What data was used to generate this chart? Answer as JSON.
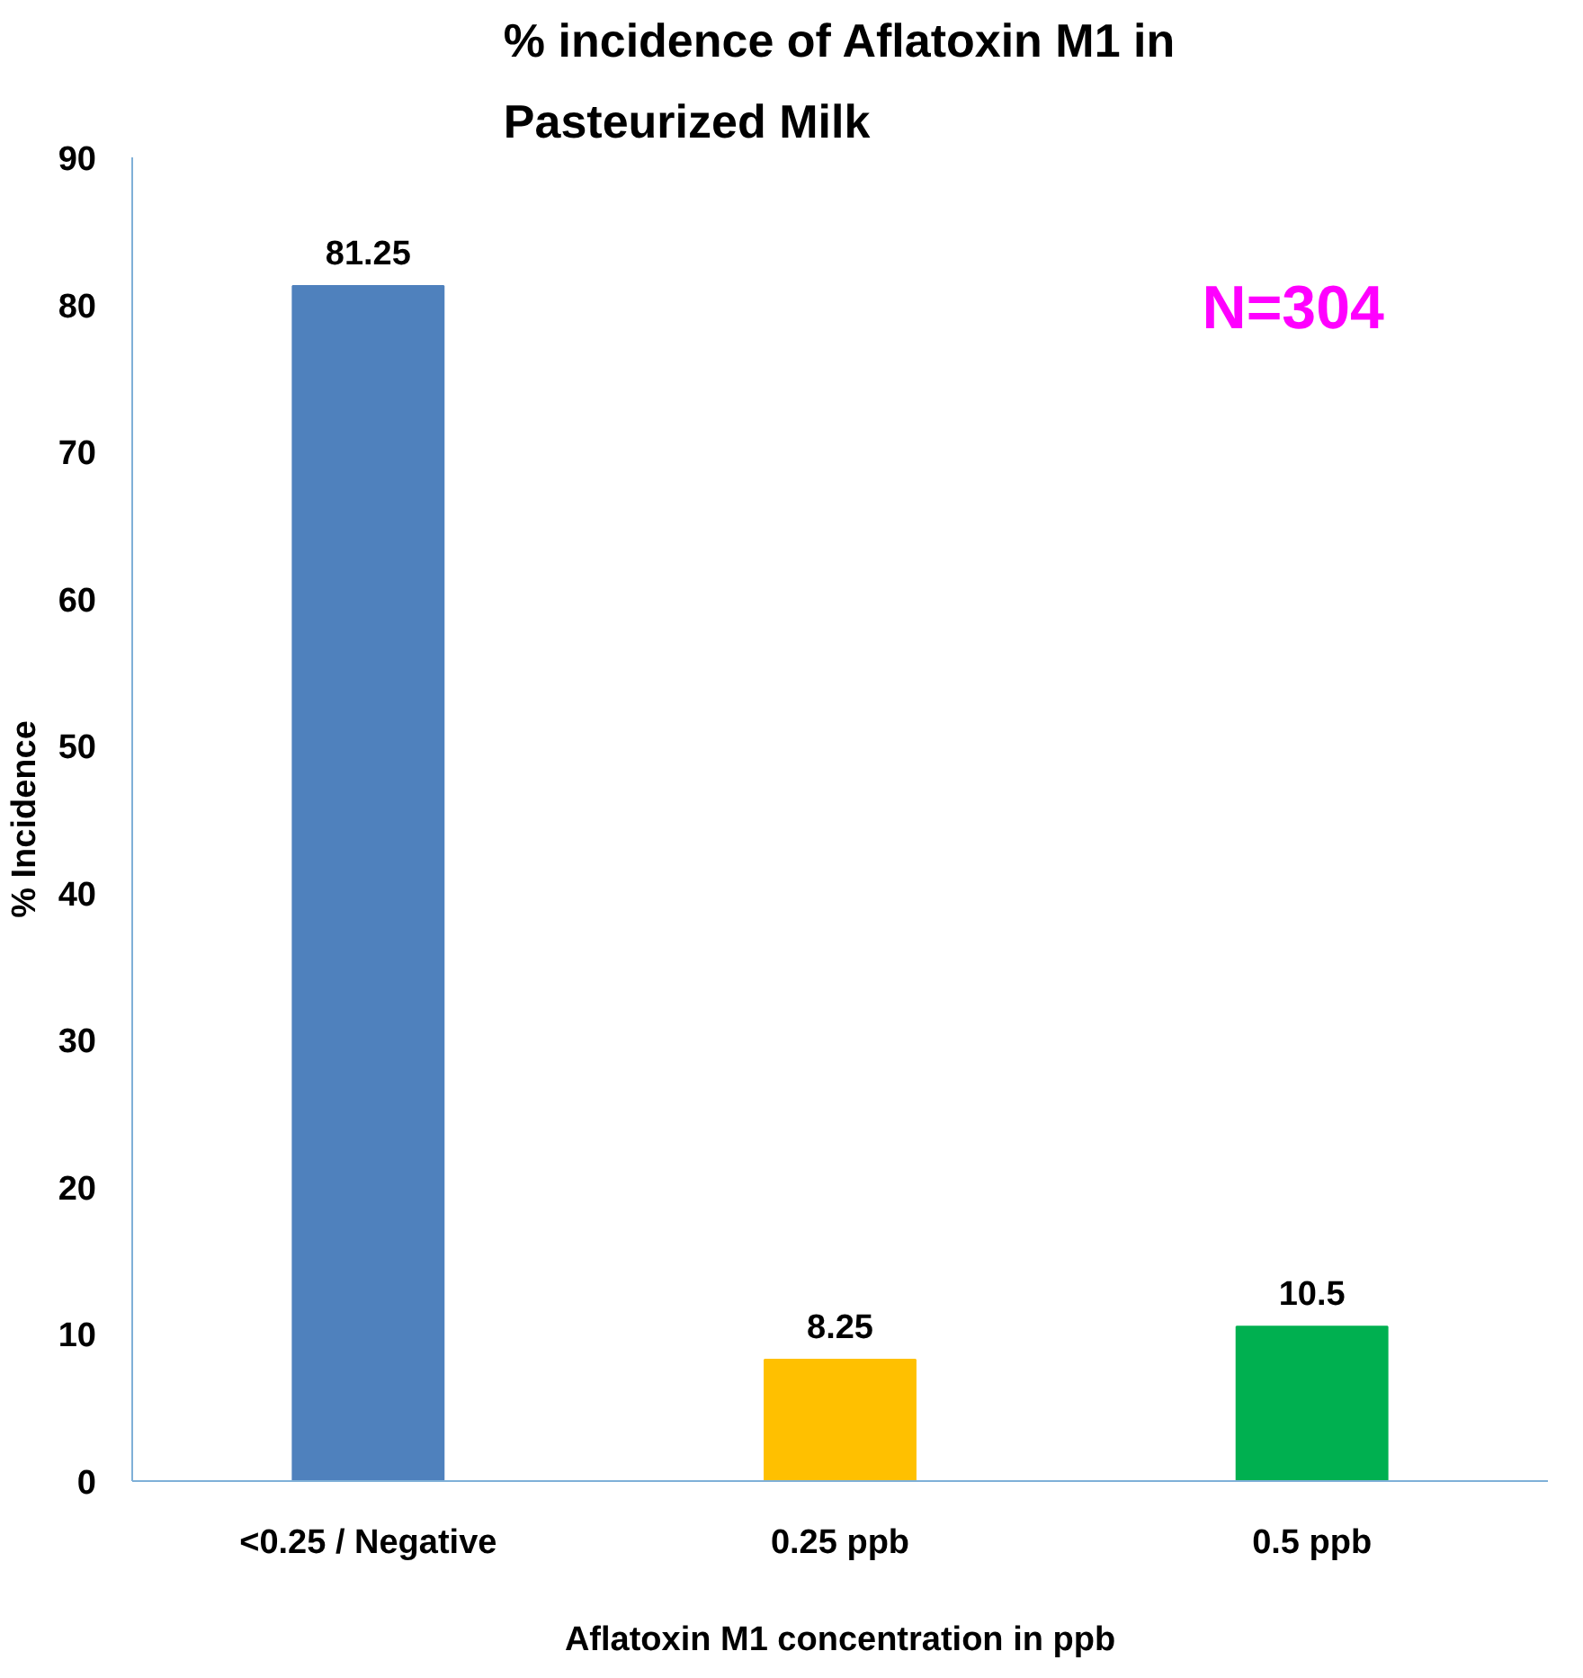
{
  "chart_data": {
    "type": "bar",
    "title": "% incidence of Aflatoxin M1 in Pasteurized Milk",
    "xlabel": "Aflatoxin M1 concentration in ppb",
    "ylabel": "% Incidence",
    "categories": [
      "<0.25 / Negative",
      "0.25 ppb",
      "0.5 ppb"
    ],
    "values": [
      81.25,
      8.25,
      10.5
    ],
    "colors": [
      "#4f81bd",
      "#ffc000",
      "#00b050"
    ],
    "ylim": [
      0,
      90
    ],
    "yticks": [
      0,
      10,
      20,
      30,
      40,
      50,
      60,
      70,
      80,
      90
    ],
    "data_labels": true,
    "grid": false,
    "annotations": [
      "N=304"
    ]
  }
}
